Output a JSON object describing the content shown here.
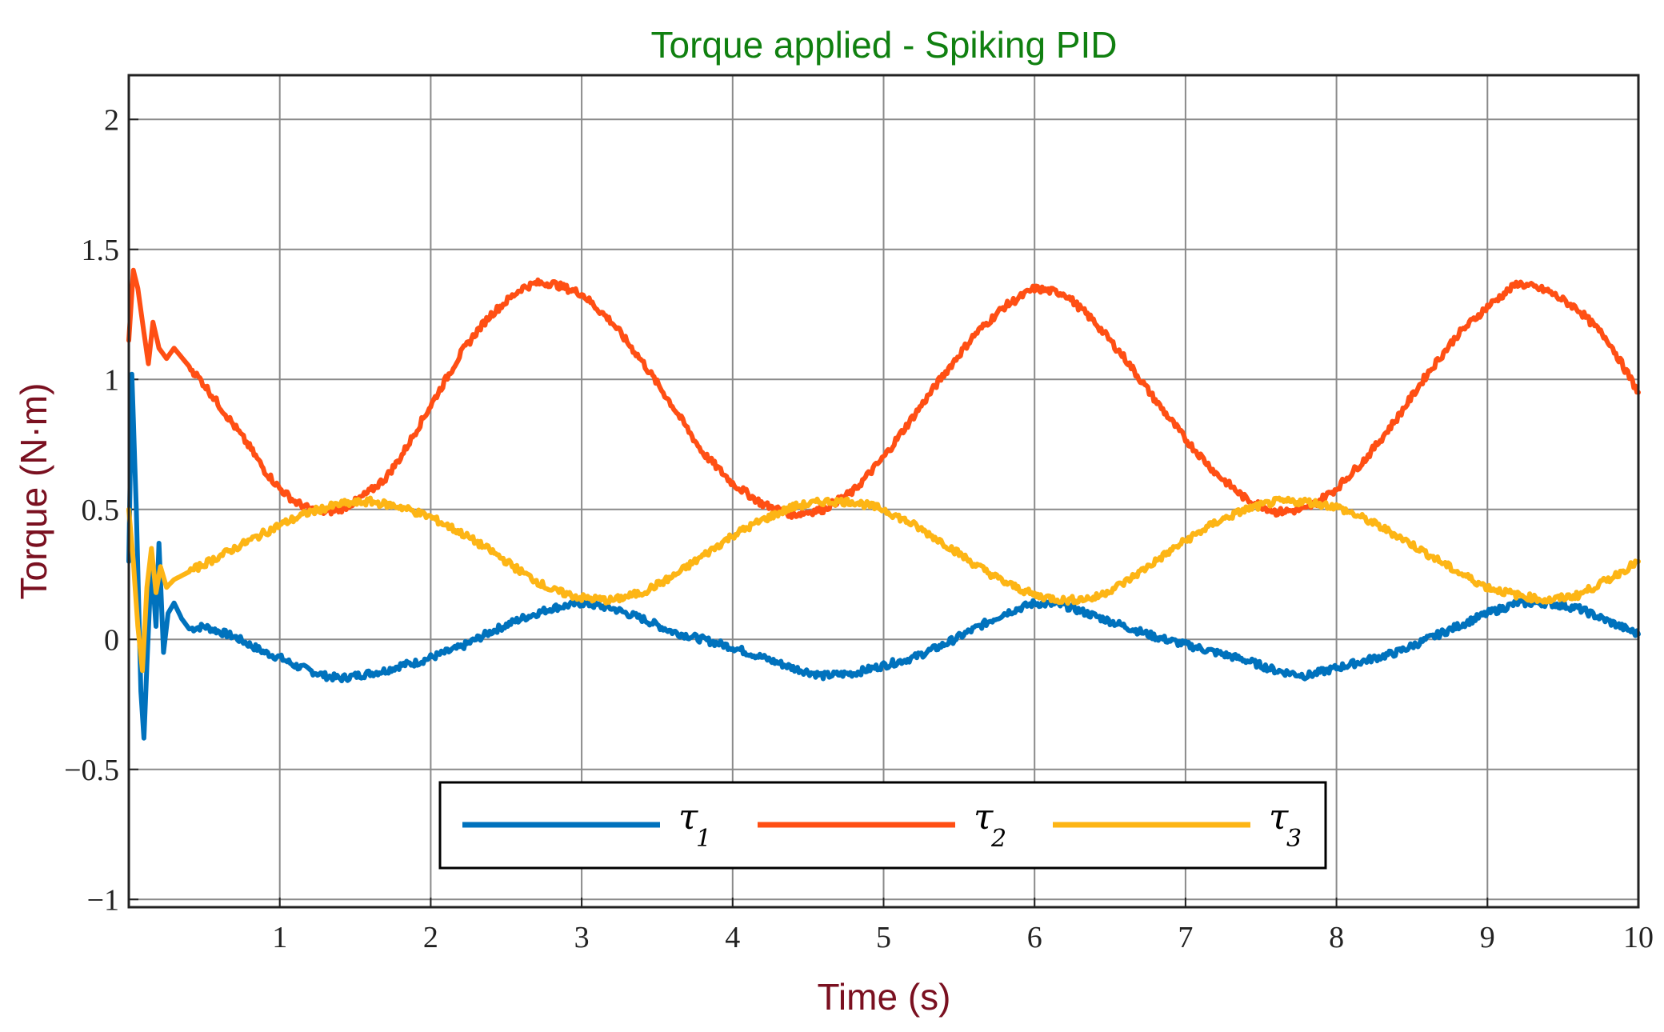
{
  "chart_data": {
    "type": "line",
    "title": "Torque applied - Spiking PID",
    "xlabel": "Time (s)",
    "ylabel": "Torque (N·m)",
    "xlim": [
      0,
      10
    ],
    "ylim": [
      -1.03,
      2.17
    ],
    "xticks": [
      1,
      2,
      3,
      4,
      5,
      6,
      7,
      8,
      9,
      10
    ],
    "xtick_labels": [
      "1",
      "2",
      "3",
      "4",
      "5",
      "6",
      "7",
      "8",
      "9",
      "10"
    ],
    "yticks": [
      -1,
      -0.5,
      0,
      0.5,
      1,
      1.5,
      2
    ],
    "ytick_labels": [
      "−1",
      "−0.5",
      "0",
      "0.5",
      "1",
      "1.5",
      "2"
    ],
    "grid": true,
    "legend_position": "bottom-center",
    "colors": {
      "title": "#108010",
      "axis_label": "#7a1020",
      "axis": "#222222",
      "grid": "#8a8a8a"
    },
    "series": [
      {
        "name": "τ",
        "subscript": "1",
        "color": "#0072BD",
        "x": [
          0,
          0.02,
          0.05,
          0.08,
          0.1,
          0.12,
          0.15,
          0.18,
          0.2,
          0.23,
          0.26,
          0.3,
          0.35,
          0.4,
          0.5,
          0.6,
          0.7,
          0.8,
          0.9,
          1.0,
          1.1,
          1.2,
          1.3,
          1.4,
          1.5,
          1.6,
          1.7,
          1.8,
          1.9,
          2.0,
          2.2,
          2.4,
          2.6,
          2.8,
          3.0,
          3.2,
          3.4,
          3.6,
          3.8,
          4.0,
          4.2,
          4.4,
          4.6,
          4.8,
          5.0,
          5.2,
          5.4,
          5.6,
          5.8,
          6.0,
          6.2,
          6.4,
          6.6,
          6.8,
          7.0,
          7.2,
          7.4,
          7.6,
          7.8,
          8.0,
          8.2,
          8.4,
          8.6,
          8.8,
          9.0,
          9.2,
          9.4,
          9.6,
          9.8,
          10.0
        ],
        "y": [
          0.3,
          1.02,
          0.5,
          -0.2,
          -0.38,
          -0.1,
          0.3,
          0.05,
          0.37,
          -0.05,
          0.1,
          0.14,
          0.08,
          0.04,
          0.05,
          0.03,
          0.01,
          -0.02,
          -0.05,
          -0.07,
          -0.1,
          -0.12,
          -0.14,
          -0.15,
          -0.14,
          -0.13,
          -0.12,
          -0.1,
          -0.09,
          -0.07,
          -0.03,
          0.03,
          0.08,
          0.12,
          0.14,
          0.12,
          0.08,
          0.03,
          0.0,
          -0.03,
          -0.07,
          -0.11,
          -0.14,
          -0.13,
          -0.1,
          -0.07,
          -0.02,
          0.04,
          0.1,
          0.14,
          0.13,
          0.09,
          0.05,
          0.01,
          -0.02,
          -0.05,
          -0.08,
          -0.12,
          -0.14,
          -0.11,
          -0.08,
          -0.05,
          0.0,
          0.05,
          0.1,
          0.14,
          0.14,
          0.12,
          0.07,
          0.02
        ]
      },
      {
        "name": "τ",
        "subscript": "2",
        "color": "#FF4F14",
        "x": [
          0,
          0.03,
          0.06,
          0.1,
          0.13,
          0.16,
          0.2,
          0.25,
          0.3,
          0.4,
          0.5,
          0.6,
          0.7,
          0.8,
          0.9,
          1.0,
          1.1,
          1.2,
          1.3,
          1.4,
          1.5,
          1.6,
          1.7,
          1.8,
          1.9,
          2.0,
          2.1,
          2.2,
          2.3,
          2.4,
          2.5,
          2.6,
          2.7,
          2.8,
          2.9,
          3.0,
          3.2,
          3.4,
          3.6,
          3.8,
          4.0,
          4.2,
          4.4,
          4.6,
          4.8,
          5.0,
          5.2,
          5.4,
          5.6,
          5.8,
          6.0,
          6.2,
          6.4,
          6.6,
          6.8,
          7.0,
          7.2,
          7.4,
          7.6,
          7.8,
          8.0,
          8.2,
          8.4,
          8.6,
          8.8,
          9.0,
          9.2,
          9.4,
          9.6,
          9.8,
          10.0
        ],
        "y": [
          1.15,
          1.42,
          1.35,
          1.18,
          1.06,
          1.22,
          1.12,
          1.08,
          1.12,
          1.05,
          0.98,
          0.9,
          0.82,
          0.74,
          0.65,
          0.58,
          0.53,
          0.5,
          0.49,
          0.5,
          0.53,
          0.57,
          0.62,
          0.7,
          0.8,
          0.9,
          1.0,
          1.1,
          1.18,
          1.25,
          1.3,
          1.35,
          1.37,
          1.37,
          1.35,
          1.33,
          1.22,
          1.07,
          0.9,
          0.72,
          0.6,
          0.52,
          0.48,
          0.5,
          0.57,
          0.7,
          0.86,
          1.02,
          1.17,
          1.28,
          1.35,
          1.33,
          1.22,
          1.08,
          0.92,
          0.77,
          0.64,
          0.54,
          0.49,
          0.5,
          0.58,
          0.7,
          0.85,
          1.02,
          1.17,
          1.28,
          1.37,
          1.34,
          1.27,
          1.15,
          0.95
        ]
      },
      {
        "name": "τ",
        "subscript": "3",
        "color": "#FDB515",
        "x": [
          0,
          0.03,
          0.06,
          0.09,
          0.12,
          0.15,
          0.18,
          0.21,
          0.25,
          0.3,
          0.4,
          0.5,
          0.6,
          0.7,
          0.8,
          0.9,
          1.0,
          1.2,
          1.4,
          1.6,
          1.8,
          2.0,
          2.2,
          2.4,
          2.6,
          2.8,
          3.0,
          3.2,
          3.4,
          3.6,
          3.8,
          4.0,
          4.2,
          4.4,
          4.6,
          4.8,
          5.0,
          5.2,
          5.4,
          5.6,
          5.8,
          6.0,
          6.2,
          6.4,
          6.6,
          6.8,
          7.0,
          7.2,
          7.4,
          7.6,
          7.8,
          8.0,
          8.2,
          8.4,
          8.6,
          8.8,
          9.0,
          9.2,
          9.4,
          9.6,
          9.8,
          10.0
        ],
        "y": [
          0.5,
          0.3,
          0.05,
          -0.12,
          0.2,
          0.35,
          0.18,
          0.28,
          0.2,
          0.23,
          0.26,
          0.29,
          0.32,
          0.35,
          0.38,
          0.41,
          0.44,
          0.49,
          0.52,
          0.53,
          0.51,
          0.47,
          0.41,
          0.34,
          0.26,
          0.19,
          0.16,
          0.15,
          0.18,
          0.24,
          0.32,
          0.4,
          0.46,
          0.51,
          0.53,
          0.53,
          0.5,
          0.44,
          0.37,
          0.29,
          0.22,
          0.17,
          0.15,
          0.16,
          0.22,
          0.3,
          0.38,
          0.45,
          0.5,
          0.53,
          0.53,
          0.51,
          0.46,
          0.4,
          0.33,
          0.26,
          0.2,
          0.17,
          0.15,
          0.17,
          0.23,
          0.3
        ]
      }
    ]
  }
}
